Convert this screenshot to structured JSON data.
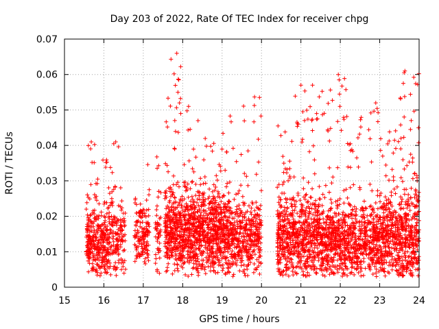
{
  "chart_data": {
    "type": "scatter",
    "title": "Day 203 of 2022, Rate Of TEC Index for receiver chpg",
    "xlabel": "GPS time / hours",
    "ylabel": "ROTI / TECUs",
    "xlim": [
      15,
      24
    ],
    "ylim": [
      0,
      0.07
    ],
    "grid": true,
    "marker": "+",
    "x_ticks": [
      "15",
      "16",
      "17",
      "18",
      "19",
      "20",
      "21",
      "22",
      "23",
      "24"
    ],
    "y_ticks": [
      "0",
      "0.01",
      "0.02",
      "0.03",
      "0.04",
      "0.05",
      "0.06",
      "0.07"
    ],
    "series": [
      {
        "name": "ROTI",
        "color": "#ff0000",
        "clusters": [
          {
            "x_range": [
              15.55,
              15.8
            ],
            "y_center": 0.014,
            "y_spread": 0.006,
            "y_max": 0.041,
            "count": 150
          },
          {
            "x_range": [
              15.8,
              16.1
            ],
            "y_center": 0.012,
            "y_spread": 0.006,
            "y_max": 0.039,
            "count": 170
          },
          {
            "x_range": [
              16.1,
              16.55
            ],
            "y_center": 0.015,
            "y_spread": 0.007,
            "y_max": 0.041,
            "count": 170
          },
          {
            "x_range": [
              16.78,
              17.15
            ],
            "y_center": 0.014,
            "y_spread": 0.006,
            "y_max": 0.038,
            "count": 150
          },
          {
            "x_range": [
              17.3,
              17.45
            ],
            "y_center": 0.014,
            "y_spread": 0.007,
            "y_max": 0.037,
            "count": 50
          },
          {
            "x_range": [
              17.55,
              18.0
            ],
            "y_center": 0.016,
            "y_spread": 0.008,
            "y_max": 0.066,
            "count": 320
          },
          {
            "x_range": [
              18.0,
              18.6
            ],
            "y_center": 0.016,
            "y_spread": 0.008,
            "y_max": 0.051,
            "count": 420
          },
          {
            "x_range": [
              18.6,
              19.2
            ],
            "y_center": 0.015,
            "y_spread": 0.008,
            "y_max": 0.044,
            "count": 420
          },
          {
            "x_range": [
              19.2,
              20.0
            ],
            "y_center": 0.014,
            "y_spread": 0.007,
            "y_max": 0.054,
            "count": 400
          },
          {
            "x_range": [
              20.4,
              20.8
            ],
            "y_center": 0.014,
            "y_spread": 0.008,
            "y_max": 0.045,
            "count": 260
          },
          {
            "x_range": [
              20.8,
              21.5
            ],
            "y_center": 0.014,
            "y_spread": 0.008,
            "y_max": 0.057,
            "count": 420
          },
          {
            "x_range": [
              21.5,
              22.2
            ],
            "y_center": 0.013,
            "y_spread": 0.007,
            "y_max": 0.06,
            "count": 420
          },
          {
            "x_range": [
              22.2,
              23.0
            ],
            "y_center": 0.013,
            "y_spread": 0.007,
            "y_max": 0.052,
            "count": 430
          },
          {
            "x_range": [
              23.0,
              23.5
            ],
            "y_center": 0.014,
            "y_spread": 0.008,
            "y_max": 0.045,
            "count": 300
          },
          {
            "x_range": [
              23.5,
              24.0
            ],
            "y_center": 0.014,
            "y_spread": 0.009,
            "y_max": 0.061,
            "count": 330
          }
        ],
        "outliers": [
          [
            17.85,
            0.066
          ],
          [
            17.9,
            0.0585
          ],
          [
            17.88,
            0.055
          ],
          [
            17.92,
            0.052
          ],
          [
            18.15,
            0.051
          ],
          [
            17.8,
            0.047
          ],
          [
            17.95,
            0.049
          ],
          [
            19.95,
            0.0535
          ],
          [
            21.0,
            0.057
          ],
          [
            21.95,
            0.06
          ],
          [
            21.97,
            0.0585
          ],
          [
            21.98,
            0.0545
          ],
          [
            21.99,
            0.051
          ],
          [
            23.62,
            0.0605
          ],
          [
            23.64,
            0.061
          ],
          [
            23.6,
            0.0575
          ],
          [
            22.9,
            0.052
          ],
          [
            21.4,
            0.049
          ],
          [
            21.42,
            0.0475
          ],
          [
            20.42,
            0.0455
          ],
          [
            15.68,
            0.041
          ],
          [
            16.3,
            0.041
          ],
          [
            23.8,
            0.047
          ],
          [
            23.78,
            0.0445
          ],
          [
            21.05,
            0.0495
          ]
        ]
      }
    ]
  }
}
